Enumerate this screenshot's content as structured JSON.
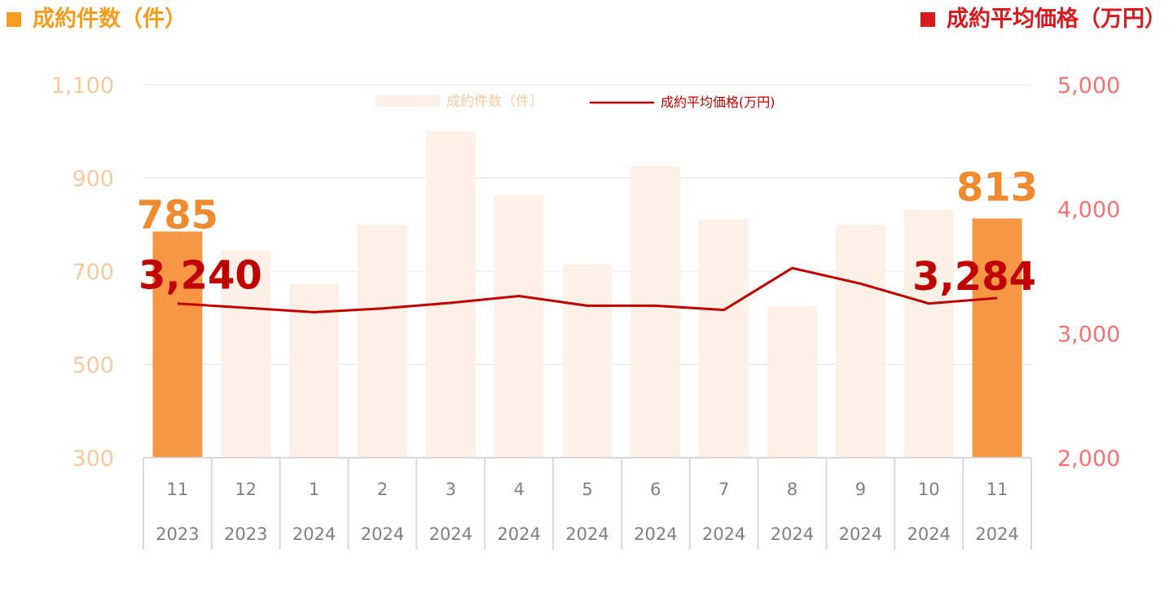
{
  "header": {
    "left_title": "成約件数（件）",
    "right_title": "成約平均価格（万円）"
  },
  "colors": {
    "bar_default": "#fdf0e7",
    "bar_highlight": "#f79746",
    "line": "#c00000",
    "left_axis_text": "#f8c9a1",
    "right_axis_text": "#f37373",
    "left_label": "#f08a2e",
    "right_label": "#c00000",
    "x_axis_text": "#7f7f7f",
    "grid": "#e6e6e6"
  },
  "chart_data": {
    "type": "bar",
    "categories": [
      "11",
      "12",
      "1",
      "2",
      "3",
      "4",
      "5",
      "6",
      "7",
      "8",
      "9",
      "10",
      "11"
    ],
    "years": [
      "2023",
      "2023",
      "2024",
      "2024",
      "2024",
      "2024",
      "2024",
      "2024",
      "2024",
      "2024",
      "2024",
      "2024",
      "2024"
    ],
    "series": [
      {
        "name": "成約件数（件）",
        "type": "bar",
        "axis": "left",
        "values": [
          785,
          745,
          673,
          800,
          1000,
          864,
          715,
          925,
          811,
          625,
          800,
          832,
          813
        ],
        "highlight": [
          true,
          false,
          false,
          false,
          false,
          false,
          false,
          false,
          false,
          false,
          false,
          false,
          true
        ]
      },
      {
        "name": "成約平均価格(万円)",
        "type": "line",
        "axis": "right",
        "values": [
          3240,
          3205,
          3170,
          3200,
          3245,
          3300,
          3222,
          3222,
          3188,
          3525,
          3400,
          3240,
          3284
        ]
      }
    ],
    "left_axis": {
      "ylim": [
        300,
        1100
      ],
      "ticks": [
        "1,100",
        "900",
        "700",
        "500",
        "300"
      ]
    },
    "right_axis": {
      "ylim": [
        2000,
        5000
      ],
      "ticks": [
        "5,000",
        "4,000",
        "3,000",
        "2,000"
      ]
    },
    "data_labels": {
      "bar_first": "785",
      "bar_last": "813",
      "line_first": "3,240",
      "line_last": "3,284"
    },
    "legend": {
      "position": "top-center",
      "bar_entry": "成約件数（件）",
      "line_entry": "成約平均価格(万円)"
    },
    "grid": true
  }
}
